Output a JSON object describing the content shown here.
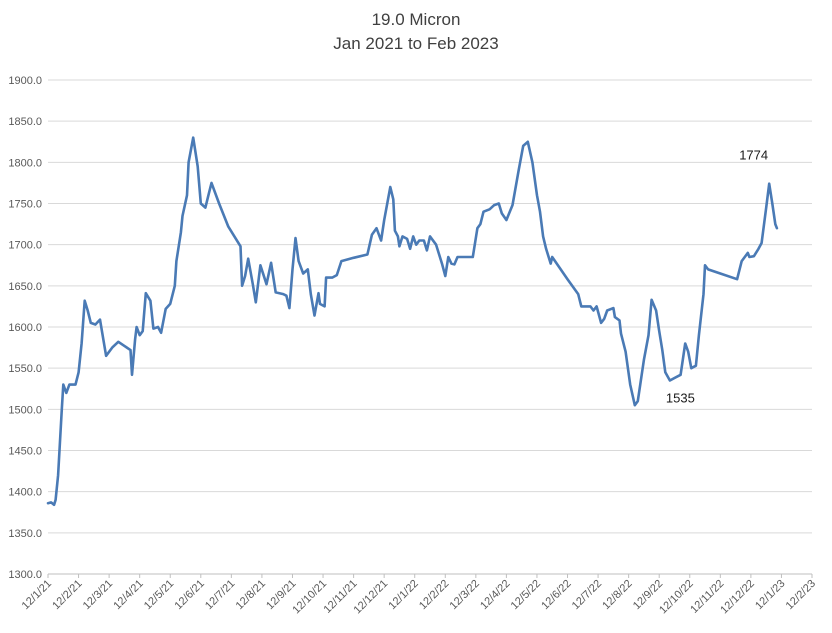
{
  "chart_data": {
    "type": "line",
    "title": "19.0 Micron",
    "subtitle": "Jan 2021 to Feb 2023",
    "xlabel": "",
    "ylabel": "",
    "ylim": [
      1300,
      1900
    ],
    "y_ticks": [
      "1300.0",
      "1350.0",
      "1400.0",
      "1450.0",
      "1500.0",
      "1550.0",
      "1600.0",
      "1650.0",
      "1700.0",
      "1750.0",
      "1800.0",
      "1850.0",
      "1900.0"
    ],
    "x_tick_labels": [
      "12/1/21",
      "12/2/21",
      "12/3/21",
      "12/4/21",
      "12/5/21",
      "12/6/21",
      "12/7/21",
      "12/8/21",
      "12/9/21",
      "12/10/21",
      "12/11/21",
      "12/12/21",
      "12/1/22",
      "12/2/22",
      "12/3/22",
      "12/4/22",
      "12/5/22",
      "12/6/22",
      "12/7/22",
      "12/8/22",
      "12/9/22",
      "12/10/22",
      "12/11/22",
      "12/12/22",
      "12/1/23",
      "12/2/23"
    ],
    "grid": true,
    "legend": "none",
    "line_color": "#4a7ab5",
    "series": [
      {
        "values": [
          {
            "x": 0.0,
            "y": 1386
          },
          {
            "x": 0.1,
            "y": 1387
          },
          {
            "x": 0.2,
            "y": 1384
          },
          {
            "x": 0.25,
            "y": 1390
          },
          {
            "x": 0.33,
            "y": 1420
          },
          {
            "x": 0.45,
            "y": 1500
          },
          {
            "x": 0.5,
            "y": 1530
          },
          {
            "x": 0.6,
            "y": 1520
          },
          {
            "x": 0.7,
            "y": 1530
          },
          {
            "x": 0.9,
            "y": 1530
          },
          {
            "x": 1.0,
            "y": 1545
          },
          {
            "x": 1.1,
            "y": 1580
          },
          {
            "x": 1.2,
            "y": 1632
          },
          {
            "x": 1.3,
            "y": 1620
          },
          {
            "x": 1.4,
            "y": 1605
          },
          {
            "x": 1.55,
            "y": 1603
          },
          {
            "x": 1.7,
            "y": 1609
          },
          {
            "x": 1.9,
            "y": 1565
          },
          {
            "x": 2.1,
            "y": 1575
          },
          {
            "x": 2.3,
            "y": 1582
          },
          {
            "x": 2.5,
            "y": 1577
          },
          {
            "x": 2.7,
            "y": 1572
          },
          {
            "x": 2.75,
            "y": 1542
          },
          {
            "x": 2.85,
            "y": 1585
          },
          {
            "x": 2.9,
            "y": 1600
          },
          {
            "x": 3.0,
            "y": 1590
          },
          {
            "x": 3.1,
            "y": 1595
          },
          {
            "x": 3.2,
            "y": 1641
          },
          {
            "x": 3.35,
            "y": 1632
          },
          {
            "x": 3.45,
            "y": 1598
          },
          {
            "x": 3.6,
            "y": 1600
          },
          {
            "x": 3.7,
            "y": 1593
          },
          {
            "x": 3.85,
            "y": 1622
          },
          {
            "x": 4.0,
            "y": 1628
          },
          {
            "x": 4.15,
            "y": 1650
          },
          {
            "x": 4.2,
            "y": 1680
          },
          {
            "x": 4.35,
            "y": 1715
          },
          {
            "x": 4.4,
            "y": 1735
          },
          {
            "x": 4.55,
            "y": 1760
          },
          {
            "x": 4.6,
            "y": 1800
          },
          {
            "x": 4.75,
            "y": 1830
          },
          {
            "x": 4.9,
            "y": 1795
          },
          {
            "x": 5.0,
            "y": 1750
          },
          {
            "x": 5.15,
            "y": 1745
          },
          {
            "x": 5.25,
            "y": 1760
          },
          {
            "x": 5.35,
            "y": 1775
          },
          {
            "x": 5.6,
            "y": 1750
          },
          {
            "x": 5.9,
            "y": 1722
          },
          {
            "x": 6.3,
            "y": 1698
          },
          {
            "x": 6.35,
            "y": 1650
          },
          {
            "x": 6.45,
            "y": 1662
          },
          {
            "x": 6.55,
            "y": 1683
          },
          {
            "x": 6.7,
            "y": 1652
          },
          {
            "x": 6.8,
            "y": 1630
          },
          {
            "x": 6.95,
            "y": 1675
          },
          {
            "x": 7.15,
            "y": 1652
          },
          {
            "x": 7.3,
            "y": 1678
          },
          {
            "x": 7.45,
            "y": 1642
          },
          {
            "x": 7.7,
            "y": 1640
          },
          {
            "x": 7.8,
            "y": 1638
          },
          {
            "x": 7.9,
            "y": 1623
          },
          {
            "x": 8.0,
            "y": 1670
          },
          {
            "x": 8.1,
            "y": 1708
          },
          {
            "x": 8.2,
            "y": 1680
          },
          {
            "x": 8.35,
            "y": 1665
          },
          {
            "x": 8.5,
            "y": 1670
          },
          {
            "x": 8.6,
            "y": 1640
          },
          {
            "x": 8.72,
            "y": 1614
          },
          {
            "x": 8.85,
            "y": 1641
          },
          {
            "x": 8.9,
            "y": 1628
          },
          {
            "x": 9.05,
            "y": 1625
          },
          {
            "x": 9.1,
            "y": 1660
          },
          {
            "x": 9.3,
            "y": 1660
          },
          {
            "x": 9.45,
            "y": 1663
          },
          {
            "x": 9.6,
            "y": 1680
          },
          {
            "x": 10.0,
            "y": 1684
          },
          {
            "x": 10.45,
            "y": 1688
          },
          {
            "x": 10.6,
            "y": 1712
          },
          {
            "x": 10.75,
            "y": 1720
          },
          {
            "x": 10.9,
            "y": 1705
          },
          {
            "x": 11.0,
            "y": 1730
          },
          {
            "x": 11.2,
            "y": 1770
          },
          {
            "x": 11.3,
            "y": 1755
          },
          {
            "x": 11.35,
            "y": 1717
          },
          {
            "x": 11.45,
            "y": 1710
          },
          {
            "x": 11.5,
            "y": 1698
          },
          {
            "x": 11.6,
            "y": 1710
          },
          {
            "x": 11.75,
            "y": 1707
          },
          {
            "x": 11.85,
            "y": 1695
          },
          {
            "x": 11.95,
            "y": 1710
          },
          {
            "x": 12.05,
            "y": 1700
          },
          {
            "x": 12.15,
            "y": 1705
          },
          {
            "x": 12.3,
            "y": 1705
          },
          {
            "x": 12.4,
            "y": 1693
          },
          {
            "x": 12.5,
            "y": 1710
          },
          {
            "x": 12.7,
            "y": 1700
          },
          {
            "x": 12.9,
            "y": 1676
          },
          {
            "x": 13.0,
            "y": 1662
          },
          {
            "x": 13.1,
            "y": 1685
          },
          {
            "x": 13.2,
            "y": 1677
          },
          {
            "x": 13.3,
            "y": 1676
          },
          {
            "x": 13.4,
            "y": 1685
          },
          {
            "x": 13.6,
            "y": 1685
          },
          {
            "x": 13.9,
            "y": 1685
          },
          {
            "x": 14.05,
            "y": 1720
          },
          {
            "x": 14.15,
            "y": 1725
          },
          {
            "x": 14.25,
            "y": 1740
          },
          {
            "x": 14.45,
            "y": 1743
          },
          {
            "x": 14.6,
            "y": 1748
          },
          {
            "x": 14.75,
            "y": 1750
          },
          {
            "x": 14.85,
            "y": 1738
          },
          {
            "x": 15.0,
            "y": 1730
          },
          {
            "x": 15.2,
            "y": 1748
          },
          {
            "x": 15.4,
            "y": 1790
          },
          {
            "x": 15.55,
            "y": 1820
          },
          {
            "x": 15.7,
            "y": 1825
          },
          {
            "x": 15.85,
            "y": 1800
          },
          {
            "x": 16.0,
            "y": 1760
          },
          {
            "x": 16.1,
            "y": 1740
          },
          {
            "x": 16.2,
            "y": 1710
          },
          {
            "x": 16.3,
            "y": 1695
          },
          {
            "x": 16.45,
            "y": 1677
          },
          {
            "x": 16.5,
            "y": 1685
          },
          {
            "x": 17.0,
            "y": 1658
          },
          {
            "x": 17.35,
            "y": 1640
          },
          {
            "x": 17.45,
            "y": 1625
          },
          {
            "x": 17.75,
            "y": 1625
          },
          {
            "x": 17.85,
            "y": 1620
          },
          {
            "x": 17.95,
            "y": 1625
          },
          {
            "x": 18.1,
            "y": 1605
          },
          {
            "x": 18.2,
            "y": 1610
          },
          {
            "x": 18.3,
            "y": 1620
          },
          {
            "x": 18.5,
            "y": 1623
          },
          {
            "x": 18.55,
            "y": 1612
          },
          {
            "x": 18.7,
            "y": 1608
          },
          {
            "x": 18.75,
            "y": 1592
          },
          {
            "x": 18.9,
            "y": 1570
          },
          {
            "x": 19.05,
            "y": 1530
          },
          {
            "x": 19.2,
            "y": 1505
          },
          {
            "x": 19.3,
            "y": 1510
          },
          {
            "x": 19.5,
            "y": 1560
          },
          {
            "x": 19.65,
            "y": 1590
          },
          {
            "x": 19.75,
            "y": 1633
          },
          {
            "x": 19.9,
            "y": 1620
          },
          {
            "x": 20.0,
            "y": 1595
          },
          {
            "x": 20.1,
            "y": 1572
          },
          {
            "x": 20.2,
            "y": 1545
          },
          {
            "x": 20.35,
            "y": 1535
          },
          {
            "x": 20.5,
            "y": 1538
          },
          {
            "x": 20.7,
            "y": 1542
          },
          {
            "x": 20.85,
            "y": 1580
          },
          {
            "x": 20.95,
            "y": 1570
          },
          {
            "x": 21.05,
            "y": 1550
          },
          {
            "x": 21.2,
            "y": 1553
          },
          {
            "x": 21.3,
            "y": 1590
          },
          {
            "x": 21.45,
            "y": 1640
          },
          {
            "x": 21.5,
            "y": 1675
          },
          {
            "x": 21.6,
            "y": 1670
          },
          {
            "x": 22.0,
            "y": 1665
          },
          {
            "x": 22.55,
            "y": 1658
          },
          {
            "x": 22.7,
            "y": 1680
          },
          {
            "x": 22.9,
            "y": 1690
          },
          {
            "x": 22.95,
            "y": 1685
          },
          {
            "x": 23.1,
            "y": 1686
          },
          {
            "x": 23.25,
            "y": 1695
          },
          {
            "x": 23.35,
            "y": 1702
          },
          {
            "x": 23.5,
            "y": 1745
          },
          {
            "x": 23.6,
            "y": 1774
          },
          {
            "x": 23.7,
            "y": 1750
          },
          {
            "x": 23.8,
            "y": 1725
          },
          {
            "x": 23.85,
            "y": 1720
          }
        ]
      }
    ],
    "annotations": [
      {
        "text": "1535",
        "x": 20.35,
        "y": 1535
      },
      {
        "text": "1774",
        "x": 23.6,
        "y": 1774
      }
    ]
  }
}
